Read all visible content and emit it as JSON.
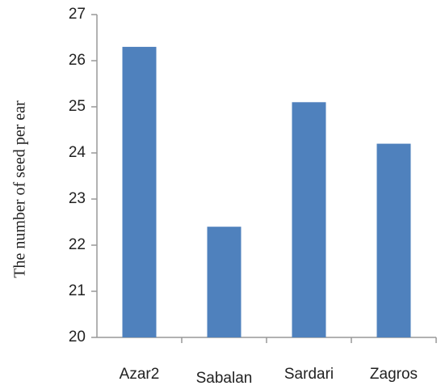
{
  "chart_data": {
    "type": "bar",
    "y_label": "The number of seed per ear",
    "categories": [
      "Azar2",
      "Sabalan",
      "Sardari",
      "Zagros"
    ],
    "values": [
      26.3,
      22.4,
      25.1,
      24.2
    ],
    "color": "#4f81bd",
    "ylim": [
      20,
      27
    ],
    "yticks": [
      20,
      21,
      22,
      23,
      24,
      25,
      26,
      27
    ],
    "grid": false
  }
}
